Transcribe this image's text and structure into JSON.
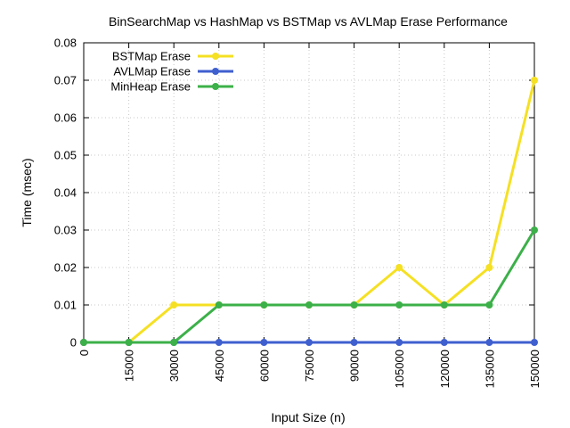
{
  "chart_data": {
    "type": "line",
    "title": "BinSearchMap vs HashMap vs BSTMap vs AVLMap Erase Performance",
    "xlabel": "Input Size (n)",
    "ylabel": "Time (msec)",
    "x": [
      0,
      15000,
      30000,
      45000,
      60000,
      75000,
      90000,
      105000,
      120000,
      135000,
      150000
    ],
    "x_tick_labels": [
      "0",
      "15000",
      "30000",
      "45000",
      "60000",
      "75000",
      "90000",
      "105000",
      "120000",
      "135000",
      "150000"
    ],
    "xlim": [
      0,
      150000
    ],
    "ylim": [
      0,
      0.08
    ],
    "y_ticks": [
      0,
      0.01,
      0.02,
      0.03,
      0.04,
      0.05,
      0.06,
      0.07,
      0.08
    ],
    "y_tick_labels": [
      "0",
      "0.01",
      "0.02",
      "0.03",
      "0.04",
      "0.05",
      "0.06",
      "0.07",
      "0.08"
    ],
    "grid": true,
    "legend_position": "top-left",
    "series": [
      {
        "name": "BSTMap Erase",
        "color": "#f5e023",
        "values": [
          0,
          0,
          0.01,
          0.01,
          0.01,
          0.01,
          0.01,
          0.02,
          0.01,
          0.02,
          0.07
        ]
      },
      {
        "name": "AVLMap Erase",
        "color": "#3f5fcf",
        "values": [
          0,
          0,
          0,
          0,
          0,
          0,
          0,
          0,
          0,
          0,
          0
        ]
      },
      {
        "name": "MinHeap Erase",
        "color": "#3cb049",
        "values": [
          0,
          0,
          0,
          0.01,
          0.01,
          0.01,
          0.01,
          0.01,
          0.01,
          0.01,
          0.03
        ]
      }
    ]
  }
}
